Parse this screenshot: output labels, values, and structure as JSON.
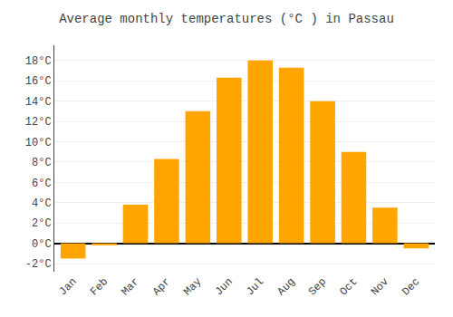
{
  "chart_data": {
    "type": "bar",
    "title": "Average monthly temperatures (°C ) in Passau",
    "categories": [
      "Jan",
      "Feb",
      "Mar",
      "Apr",
      "May",
      "Jun",
      "Jul",
      "Aug",
      "Sep",
      "Oct",
      "Nov",
      "Dec"
    ],
    "values": [
      -1.5,
      -0.2,
      3.8,
      8.3,
      13.0,
      16.3,
      18.0,
      17.3,
      14.0,
      9.0,
      3.5,
      -0.5
    ],
    "color": "#FFA500",
    "ylim": [
      -2.8,
      19.5
    ],
    "yticks": [
      {
        "value": -2,
        "label": "-2°C"
      },
      {
        "value": 0,
        "label": "0°C"
      },
      {
        "value": 2,
        "label": "2°C"
      },
      {
        "value": 4,
        "label": "4°C"
      },
      {
        "value": 6,
        "label": "6°C"
      },
      {
        "value": 8,
        "label": "8°C"
      },
      {
        "value": 10,
        "label": "10°C"
      },
      {
        "value": 12,
        "label": "12°C"
      },
      {
        "value": 14,
        "label": "14°C"
      },
      {
        "value": 16,
        "label": "16°C"
      },
      {
        "value": 18,
        "label": "18°C"
      }
    ],
    "grid": true
  }
}
